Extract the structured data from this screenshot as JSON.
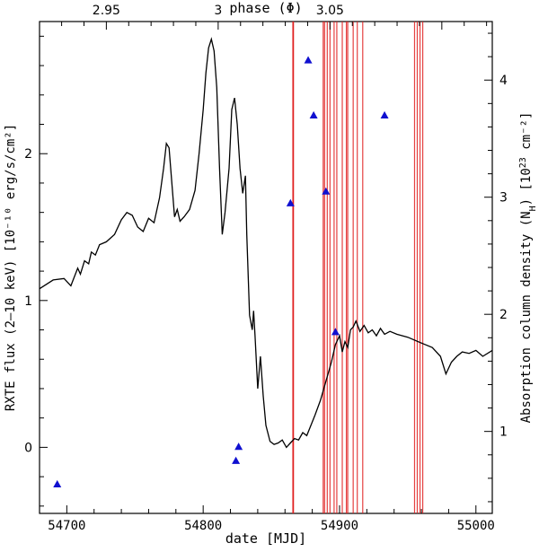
{
  "chart_data": {
    "type": "line",
    "xlabel": "date [MJD]",
    "ylabel_left": "RXTE flux (2–10 keV) [10⁻¹⁰ erg/s/cm²]",
    "ylabel_right": "Absorption column density (N_H) [10²³ cm⁻²]",
    "ylabel_right_parts": {
      "pre": "Absorption column density (N",
      "sub": "H",
      "mid": ") [10",
      "sup": "23",
      "post": " cm⁻²]"
    },
    "top_axis_label": "phase (Φ)",
    "xlim": [
      54680,
      55012
    ],
    "ylim_left": [
      -0.45,
      2.9
    ],
    "ylim_right": [
      0.3,
      4.5
    ],
    "x_ticks": [
      54700,
      54800,
      54900,
      55000
    ],
    "x_tick_labels": [
      "54700",
      "54800",
      "54900",
      "55000"
    ],
    "y_left_ticks": [
      0,
      1,
      2
    ],
    "y_left_tick_labels": [
      "0",
      "1",
      "2"
    ],
    "y_right_ticks": [
      1,
      2,
      3,
      4
    ],
    "y_right_tick_labels": [
      "1",
      "2",
      "3",
      "4"
    ],
    "phase_ticks": [
      {
        "label": "2.95",
        "mjd": 54729
      },
      {
        "label": "3",
        "mjd": 54811
      },
      {
        "label": "3.05",
        "mjd": 54893
      }
    ],
    "series": [
      {
        "name": "RXTE flux",
        "axis": "left",
        "color": "#000000",
        "points": [
          [
            54680,
            1.08
          ],
          [
            54690,
            1.14
          ],
          [
            54698,
            1.15
          ],
          [
            54703,
            1.1
          ],
          [
            54708,
            1.22
          ],
          [
            54710,
            1.18
          ],
          [
            54713,
            1.27
          ],
          [
            54716,
            1.25
          ],
          [
            54718,
            1.33
          ],
          [
            54721,
            1.31
          ],
          [
            54724,
            1.38
          ],
          [
            54729,
            1.4
          ],
          [
            54735,
            1.45
          ],
          [
            54740,
            1.55
          ],
          [
            54744,
            1.6
          ],
          [
            54748,
            1.58
          ],
          [
            54752,
            1.5
          ],
          [
            54756,
            1.47
          ],
          [
            54760,
            1.56
          ],
          [
            54764,
            1.53
          ],
          [
            54768,
            1.7
          ],
          [
            54771,
            1.9
          ],
          [
            54773,
            2.07
          ],
          [
            54775,
            2.04
          ],
          [
            54777,
            1.8
          ],
          [
            54779,
            1.57
          ],
          [
            54781,
            1.62
          ],
          [
            54783,
            1.54
          ],
          [
            54786,
            1.57
          ],
          [
            54790,
            1.62
          ],
          [
            54794,
            1.75
          ],
          [
            54797,
            2.0
          ],
          [
            54800,
            2.3
          ],
          [
            54802,
            2.55
          ],
          [
            54804,
            2.72
          ],
          [
            54806,
            2.78
          ],
          [
            54808,
            2.7
          ],
          [
            54810,
            2.45
          ],
          [
            54812,
            1.9
          ],
          [
            54814,
            1.45
          ],
          [
            54816,
            1.6
          ],
          [
            54819,
            1.9
          ],
          [
            54821,
            2.3
          ],
          [
            54823,
            2.38
          ],
          [
            54825,
            2.2
          ],
          [
            54827,
            1.9
          ],
          [
            54829,
            1.73
          ],
          [
            54831,
            1.85
          ],
          [
            54832,
            1.45
          ],
          [
            54834,
            0.9
          ],
          [
            54836,
            0.8
          ],
          [
            54837,
            0.93
          ],
          [
            54838,
            0.76
          ],
          [
            54840,
            0.4
          ],
          [
            54842,
            0.62
          ],
          [
            54844,
            0.35
          ],
          [
            54846,
            0.15
          ],
          [
            54849,
            0.04
          ],
          [
            54852,
            0.02
          ],
          [
            54855,
            0.03
          ],
          [
            54858,
            0.05
          ],
          [
            54861,
            0.0
          ],
          [
            54864,
            0.03
          ],
          [
            54867,
            0.06
          ],
          [
            54870,
            0.05
          ],
          [
            54873,
            0.1
          ],
          [
            54876,
            0.08
          ],
          [
            54879,
            0.15
          ],
          [
            54882,
            0.22
          ],
          [
            54886,
            0.32
          ],
          [
            54890,
            0.45
          ],
          [
            54894,
            0.58
          ],
          [
            54897,
            0.7
          ],
          [
            54900,
            0.76
          ],
          [
            54902,
            0.65
          ],
          [
            54904,
            0.72
          ],
          [
            54906,
            0.68
          ],
          [
            54908,
            0.8
          ],
          [
            54910,
            0.82
          ],
          [
            54912,
            0.86
          ],
          [
            54915,
            0.79
          ],
          [
            54918,
            0.83
          ],
          [
            54921,
            0.78
          ],
          [
            54924,
            0.8
          ],
          [
            54927,
            0.76
          ],
          [
            54930,
            0.81
          ],
          [
            54933,
            0.77
          ],
          [
            54937,
            0.79
          ],
          [
            54942,
            0.77
          ],
          [
            54950,
            0.75
          ],
          [
            54960,
            0.71
          ],
          [
            54968,
            0.68
          ],
          [
            54974,
            0.62
          ],
          [
            54978,
            0.5
          ],
          [
            54982,
            0.58
          ],
          [
            54986,
            0.62
          ],
          [
            54990,
            0.65
          ],
          [
            54995,
            0.64
          ],
          [
            55000,
            0.66
          ],
          [
            55005,
            0.62
          ],
          [
            55012,
            0.66
          ]
        ]
      },
      {
        "name": "Absorption column density",
        "axis": "right",
        "color": "#1010d0",
        "marker": "triangle",
        "points": [
          [
            54693,
            0.55
          ],
          [
            54824,
            0.75
          ],
          [
            54826,
            0.87
          ],
          [
            54864,
            2.95
          ],
          [
            54877,
            4.17
          ],
          [
            54881,
            3.7
          ],
          [
            54890,
            3.05
          ],
          [
            54897,
            1.85
          ],
          [
            54933,
            3.7
          ]
        ]
      }
    ],
    "vertical_lines": {
      "color": "#e02020",
      "mjd": [
        54866,
        54888,
        54889,
        54891,
        54893,
        54896,
        54898,
        54902,
        54905,
        54906,
        54910,
        54913,
        54917,
        54955,
        54957,
        54959,
        54961
      ]
    }
  }
}
